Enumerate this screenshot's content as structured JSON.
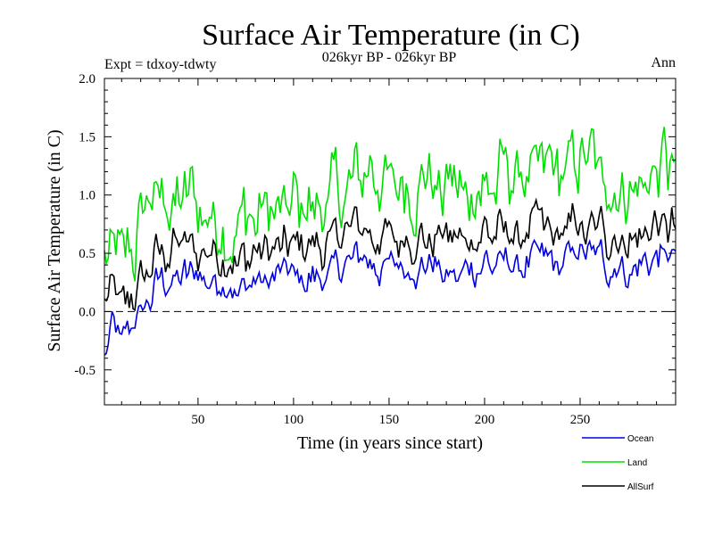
{
  "chart_data": {
    "type": "line",
    "title": "Surface Air Temperature (in C)",
    "subtitle": "026kyr BP - 026kyr BP",
    "experiment_label": "Expt = tdxoy-tdwty",
    "season_label": "Ann",
    "xlabel": "Time (in years since start)",
    "ylabel": "Surface Air Temperature (in C)",
    "xlim": [
      1,
      300
    ],
    "ylim": [
      -0.8,
      2.0
    ],
    "x_ticks": [
      50,
      100,
      150,
      200,
      250
    ],
    "y_ticks": [
      -0.5,
      0.0,
      0.5,
      1.0,
      1.5,
      2.0
    ],
    "y_tick_labels": [
      "-0.5",
      "0.0",
      "0.5",
      "1.0",
      "1.5",
      "2.0"
    ],
    "zero_line": true,
    "grid": false,
    "legend_position": "bottom-right",
    "series": [
      {
        "name": "Ocean",
        "color": "#0000e0",
        "anchors": [
          [
            1,
            -0.45
          ],
          [
            5,
            -0.15
          ],
          [
            10,
            -0.3
          ],
          [
            15,
            -0.15
          ],
          [
            20,
            -0.05
          ],
          [
            25,
            0.1
          ],
          [
            30,
            0.25
          ],
          [
            40,
            0.3
          ],
          [
            50,
            0.3
          ],
          [
            60,
            0.25
          ],
          [
            70,
            0.2
          ],
          [
            80,
            0.25
          ],
          [
            90,
            0.25
          ],
          [
            100,
            0.3
          ],
          [
            110,
            0.3
          ],
          [
            120,
            0.35
          ],
          [
            130,
            0.45
          ],
          [
            140,
            0.45
          ],
          [
            150,
            0.4
          ],
          [
            160,
            0.4
          ],
          [
            170,
            0.4
          ],
          [
            180,
            0.35
          ],
          [
            190,
            0.35
          ],
          [
            200,
            0.45
          ],
          [
            210,
            0.4
          ],
          [
            220,
            0.4
          ],
          [
            230,
            0.45
          ],
          [
            240,
            0.4
          ],
          [
            250,
            0.5
          ],
          [
            260,
            0.45
          ],
          [
            270,
            0.4
          ],
          [
            280,
            0.4
          ],
          [
            290,
            0.5
          ],
          [
            300,
            0.45
          ]
        ]
      },
      {
        "name": "Land",
        "color": "#00e000",
        "anchors": [
          [
            1,
            0.35
          ],
          [
            10,
            0.5
          ],
          [
            15,
            0.55
          ],
          [
            20,
            0.7
          ],
          [
            25,
            0.85
          ],
          [
            30,
            0.95
          ],
          [
            40,
            0.95
          ],
          [
            50,
            0.9
          ],
          [
            60,
            0.8
          ],
          [
            70,
            0.8
          ],
          [
            80,
            0.85
          ],
          [
            90,
            0.9
          ],
          [
            100,
            0.9
          ],
          [
            110,
            0.9
          ],
          [
            120,
            0.95
          ],
          [
            130,
            1.05
          ],
          [
            140,
            1.15
          ],
          [
            150,
            1.15
          ],
          [
            160,
            1.1
          ],
          [
            170,
            1.1
          ],
          [
            180,
            1.05
          ],
          [
            190,
            1.05
          ],
          [
            200,
            1.15
          ],
          [
            210,
            1.15
          ],
          [
            220,
            1.15
          ],
          [
            230,
            1.2
          ],
          [
            240,
            1.15
          ],
          [
            250,
            1.25
          ],
          [
            260,
            1.2
          ],
          [
            270,
            1.1
          ],
          [
            280,
            1.05
          ],
          [
            290,
            1.15
          ],
          [
            300,
            1.2
          ]
        ]
      },
      {
        "name": "AllSurf",
        "color": "#000000",
        "anchors": [
          [
            1,
            0.0
          ],
          [
            5,
            0.1
          ],
          [
            10,
            0.05
          ],
          [
            15,
            0.1
          ],
          [
            20,
            0.2
          ],
          [
            25,
            0.35
          ],
          [
            30,
            0.5
          ],
          [
            40,
            0.55
          ],
          [
            50,
            0.55
          ],
          [
            60,
            0.5
          ],
          [
            70,
            0.45
          ],
          [
            80,
            0.5
          ],
          [
            90,
            0.5
          ],
          [
            100,
            0.55
          ],
          [
            110,
            0.55
          ],
          [
            120,
            0.6
          ],
          [
            130,
            0.7
          ],
          [
            140,
            0.7
          ],
          [
            150,
            0.65
          ],
          [
            160,
            0.65
          ],
          [
            170,
            0.65
          ],
          [
            180,
            0.6
          ],
          [
            190,
            0.6
          ],
          [
            200,
            0.7
          ],
          [
            210,
            0.65
          ],
          [
            220,
            0.65
          ],
          [
            230,
            0.7
          ],
          [
            240,
            0.65
          ],
          [
            250,
            0.75
          ],
          [
            260,
            0.7
          ],
          [
            270,
            0.65
          ],
          [
            280,
            0.65
          ],
          [
            290,
            0.75
          ],
          [
            300,
            0.7
          ]
        ]
      }
    ]
  }
}
